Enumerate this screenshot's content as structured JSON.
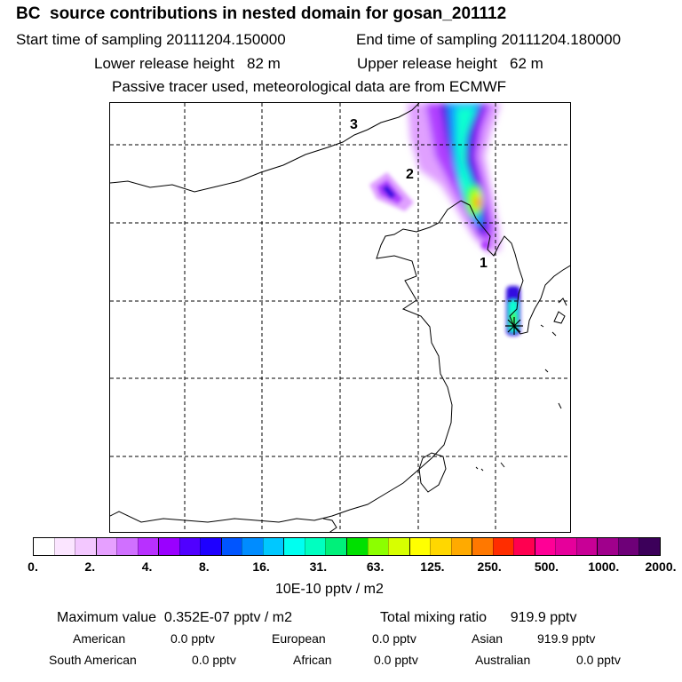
{
  "header": {
    "title": "BC  source contributions in nested domain for gosan_201112",
    "start_time": "Start time of sampling 20111204.150000",
    "end_time": "End time of sampling 20111204.180000",
    "lower_release": "Lower release height   82 m",
    "upper_release": "Upper release height   62 m",
    "tracer_note": "Passive tracer used, meteorological data are from ECMWF"
  },
  "map": {
    "trajectory_labels": [
      "1",
      "2",
      "3"
    ],
    "receptor_marker": "star",
    "plume_colors": [
      "#e0a0ff",
      "#b040ff",
      "#3010e0",
      "#10a0ff",
      "#10ffd0",
      "#40ff40",
      "#c8ff00",
      "#ffb000",
      "#ff3030"
    ]
  },
  "colorbar": {
    "colors": [
      "#ffffff",
      "#fbe5ff",
      "#f3c8ff",
      "#e6a0ff",
      "#d070ff",
      "#b830ff",
      "#9a00ff",
      "#5000ff",
      "#1e00ff",
      "#0055ff",
      "#008cff",
      "#00c8ff",
      "#00fff0",
      "#00ffc0",
      "#00f07a",
      "#00e000",
      "#8cff00",
      "#d7ff00",
      "#ffff00",
      "#ffd700",
      "#ffaa00",
      "#ff7800",
      "#ff2d00",
      "#ff0050",
      "#ff0096",
      "#e6009b",
      "#c80096",
      "#a0008c",
      "#6e0078",
      "#3c005a"
    ],
    "tick_labels": [
      "0.",
      "2.",
      "4.",
      "8.",
      "16.",
      "31.",
      "63.",
      "125.",
      "250.",
      "500.",
      "1000.",
      "2000."
    ],
    "unit": "10E-10 pptv / m2"
  },
  "stats": {
    "max_value": "Maximum value  0.352E-07 pptv / m2",
    "total_mixing": "Total mixing ratio      919.9 pptv",
    "american_label": "American",
    "american_value": "0.0 pptv",
    "european_label": "European",
    "european_value": "0.0 pptv",
    "asian_label": "Asian",
    "asian_value": "919.9 pptv",
    "south_american_label": "South American",
    "south_american_value": "0.0 pptv",
    "african_label": "African",
    "african_value": "0.0 pptv",
    "australian_label": "Australian",
    "australian_value": "0.0 pptv"
  }
}
